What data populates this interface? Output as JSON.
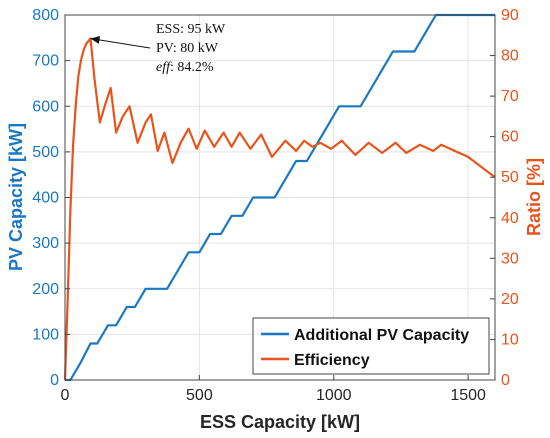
{
  "chart_data": {
    "type": "line",
    "xlabel": "ESS Capacity [kW]",
    "ylabel_left": "PV Capacity [kW]",
    "ylabel_right": "Ratio [%]",
    "xlim": [
      0,
      1600
    ],
    "ylim_left": [
      0,
      800
    ],
    "ylim_right": [
      0,
      90
    ],
    "xticks": [
      0,
      500,
      1000,
      1500
    ],
    "yticks_left": [
      0,
      100,
      200,
      300,
      400,
      500,
      600,
      700,
      800
    ],
    "yticks_right": [
      0,
      10,
      20,
      30,
      40,
      50,
      60,
      70,
      80,
      90
    ],
    "grid": true,
    "legend_position": "bottom-right",
    "colors": {
      "pv": "#1a78c2",
      "efficiency": "#e8541b",
      "axis_left": "#1a78c2",
      "axis_right": "#e8541b"
    },
    "series": [
      {
        "name": "Additional PV Capacity",
        "axis": "left",
        "x": [
          0,
          20,
          60,
          95,
          120,
          160,
          190,
          230,
          260,
          300,
          340,
          380,
          420,
          460,
          500,
          540,
          580,
          620,
          660,
          700,
          740,
          780,
          820,
          860,
          900,
          940,
          980,
          1020,
          1060,
          1100,
          1140,
          1180,
          1220,
          1260,
          1300,
          1340,
          1380,
          1420,
          1460,
          1500,
          1540,
          1580,
          1600
        ],
        "y": [
          0,
          0,
          40,
          80,
          80,
          120,
          120,
          160,
          160,
          200,
          200,
          200,
          240,
          280,
          280,
          320,
          320,
          360,
          360,
          400,
          400,
          400,
          440,
          480,
          480,
          520,
          560,
          600,
          600,
          600,
          640,
          680,
          720,
          720,
          720,
          760,
          800,
          800,
          800,
          800,
          800,
          800,
          800
        ]
      },
      {
        "name": "Efficiency",
        "axis": "right",
        "x": [
          0,
          10,
          20,
          30,
          40,
          50,
          60,
          70,
          80,
          95,
          110,
          130,
          150,
          170,
          190,
          215,
          240,
          270,
          300,
          320,
          345,
          370,
          400,
          430,
          460,
          490,
          520,
          555,
          590,
          620,
          650,
          690,
          730,
          770,
          820,
          860,
          890,
          920,
          950,
          990,
          1030,
          1080,
          1130,
          1180,
          1230,
          1270,
          1320,
          1370,
          1400,
          1450,
          1500,
          1550,
          1600
        ],
        "y": [
          0,
          20,
          42,
          58,
          68,
          75,
          79,
          81.5,
          83,
          84.2,
          74,
          63.5,
          68,
          72,
          61,
          65,
          67.5,
          58.5,
          63.5,
          65.5,
          56.5,
          61,
          53.5,
          58.5,
          62,
          57,
          61.5,
          57.5,
          61,
          57.5,
          61,
          57,
          60.5,
          55,
          59,
          56.5,
          59,
          57.5,
          58.5,
          57,
          59,
          55.5,
          58.5,
          56,
          58.5,
          56,
          58,
          56.5,
          58,
          56.5,
          55,
          52.5,
          50
        ]
      }
    ],
    "annotation": {
      "point": {
        "x": 95,
        "y": 84.2,
        "axis": "right"
      },
      "line1": "ESS: 95 kW",
      "line2": "PV: 80 kW",
      "line3_label": "eff",
      "line3_value": ": 84.2%"
    }
  }
}
